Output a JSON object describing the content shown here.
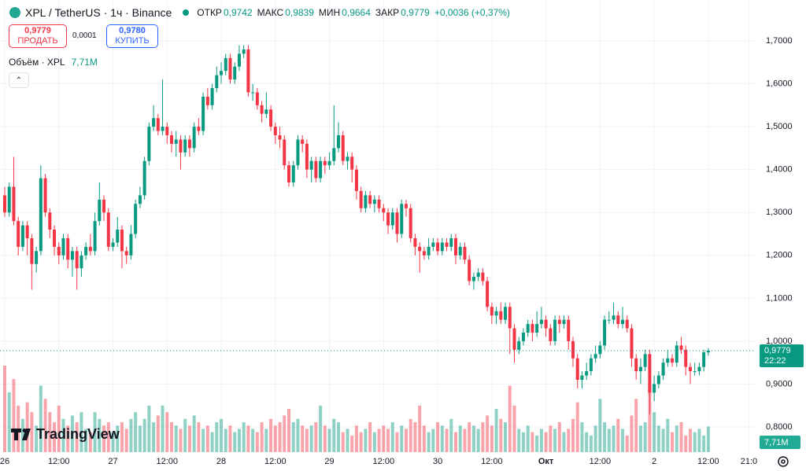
{
  "header": {
    "ohlc": [
      {
        "label": "ОТКР",
        "value": "0,9742"
      },
      {
        "label": "МАКС",
        "value": "0,9839"
      },
      {
        "label": "МИН",
        "value": "0,9664"
      },
      {
        "label": "ЗАКР",
        "value": "0,9779"
      }
    ],
    "change": "+0,0036 (+0,37%)"
  },
  "order": {
    "sell_price": "0,9779",
    "sell_label": "ПРОДАТЬ",
    "spread": "0,0001",
    "buy_price": "0,9780",
    "buy_label": "КУПИТЬ"
  },
  "logo": "TradingView",
  "chart_data": {
    "type": "candlestick",
    "title": "XPL / TetherUS · 1ч · Binance",
    "up_color": "#089981",
    "down_color": "#f23645",
    "grid": true,
    "ylim": [
      0.7414,
      1.7953
    ],
    "yticks": [
      {
        "value": 1.7,
        "label": "1,7000"
      },
      {
        "value": 1.6,
        "label": "1,6000"
      },
      {
        "value": 1.5,
        "label": "1,5000"
      },
      {
        "value": 1.4,
        "label": "1,4000"
      },
      {
        "value": 1.3,
        "label": "1,3000"
      },
      {
        "value": 1.2,
        "label": "1,2000"
      },
      {
        "value": 1.1,
        "label": "1,1000"
      },
      {
        "value": 1.0,
        "label": "1,0000"
      },
      {
        "value": 0.9,
        "label": "0,9000"
      },
      {
        "value": 0.8,
        "label": "0,8000"
      }
    ],
    "xticks": [
      {
        "value": 0,
        "label": "26"
      },
      {
        "value": 12,
        "label": "12:00"
      },
      {
        "value": 24,
        "label": "27"
      },
      {
        "value": 36,
        "label": "12:00"
      },
      {
        "value": 48,
        "label": "28"
      },
      {
        "value": 60,
        "label": "12:00"
      },
      {
        "value": 72,
        "label": "29"
      },
      {
        "value": 84,
        "label": "12:00"
      },
      {
        "value": 96,
        "label": "30"
      },
      {
        "value": 108,
        "label": "12:00"
      },
      {
        "value": 120,
        "label": "Окт"
      },
      {
        "value": 132,
        "label": "12:00"
      },
      {
        "value": 144,
        "label": "2"
      },
      {
        "value": 156,
        "label": "12:00"
      },
      {
        "value": 165,
        "label": "21:0"
      }
    ],
    "last_price": {
      "value": 0.9779,
      "label": "0,9779"
    },
    "countdown": "22:22",
    "volume_name": "Объём · XPL",
    "last_volume_label": "7,71M",
    "open": [
      1.34,
      1.3,
      1.36,
      1.28,
      1.22,
      1.27,
      1.24,
      1.18,
      1.21,
      1.38,
      1.3,
      1.26,
      1.22,
      1.2,
      1.24,
      1.19,
      1.21,
      1.17,
      1.2,
      1.22,
      1.21,
      1.28,
      1.33,
      1.3,
      1.22,
      1.23,
      1.26,
      1.21,
      1.2,
      1.25,
      1.32,
      1.34,
      1.42,
      1.5,
      1.52,
      1.49,
      1.5,
      1.48,
      1.46,
      1.47,
      1.44,
      1.47,
      1.45,
      1.5,
      1.49,
      1.57,
      1.55,
      1.59,
      1.62,
      1.63,
      1.66,
      1.61,
      1.64,
      1.67,
      1.68,
      1.58,
      1.58,
      1.55,
      1.53,
      1.54,
      1.5,
      1.48,
      1.47,
      1.41,
      1.37,
      1.41,
      1.47,
      1.46,
      1.4,
      1.42,
      1.38,
      1.42,
      1.41,
      1.42,
      1.45,
      1.48,
      1.42,
      1.43,
      1.4,
      1.35,
      1.31,
      1.34,
      1.32,
      1.33,
      1.31,
      1.3,
      1.27,
      1.3,
      1.25,
      1.32,
      1.31,
      1.24,
      1.22,
      1.21,
      1.2,
      1.22,
      1.23,
      1.21,
      1.23,
      1.22,
      1.24,
      1.2,
      1.22,
      1.19,
      1.14,
      1.15,
      1.16,
      1.14,
      1.08,
      1.06,
      1.07,
      1.05,
      1.08,
      1.03,
      0.98,
      1.0,
      1.02,
      1.04,
      1.02,
      1.04,
      1.05,
      1.03,
      1.0,
      1.05,
      1.04,
      1.05,
      1.0,
      0.96,
      0.91,
      0.92,
      0.93,
      0.96,
      0.97,
      0.99,
      1.05,
      1.05,
      1.06,
      1.04,
      1.05,
      1.03,
      0.96,
      0.93,
      0.94,
      0.97,
      0.88,
      0.9,
      0.92,
      0.95,
      0.96,
      0.95,
      0.99,
      0.98,
      0.94,
      0.93,
      0.93,
      0.94,
      0.974
    ],
    "high": [
      1.36,
      1.37,
      1.43,
      1.29,
      1.28,
      1.28,
      1.25,
      1.22,
      1.41,
      1.39,
      1.31,
      1.27,
      1.23,
      1.25,
      1.25,
      1.22,
      1.22,
      1.21,
      1.23,
      1.25,
      1.3,
      1.37,
      1.34,
      1.31,
      1.24,
      1.29,
      1.27,
      1.22,
      1.27,
      1.33,
      1.36,
      1.43,
      1.51,
      1.55,
      1.53,
      1.61,
      1.51,
      1.49,
      1.49,
      1.48,
      1.48,
      1.48,
      1.51,
      1.52,
      1.58,
      1.59,
      1.6,
      1.64,
      1.65,
      1.67,
      1.67,
      1.65,
      1.69,
      1.69,
      1.69,
      1.6,
      1.59,
      1.56,
      1.58,
      1.55,
      1.51,
      1.5,
      1.48,
      1.42,
      1.42,
      1.48,
      1.48,
      1.47,
      1.43,
      1.43,
      1.43,
      1.43,
      1.44,
      1.55,
      1.51,
      1.49,
      1.44,
      1.44,
      1.41,
      1.36,
      1.35,
      1.35,
      1.34,
      1.34,
      1.32,
      1.31,
      1.31,
      1.31,
      1.33,
      1.33,
      1.32,
      1.25,
      1.23,
      1.22,
      1.24,
      1.24,
      1.24,
      1.24,
      1.24,
      1.25,
      1.25,
      1.23,
      1.23,
      1.2,
      1.16,
      1.17,
      1.17,
      1.15,
      1.09,
      1.08,
      1.09,
      1.09,
      1.09,
      1.04,
      1.01,
      1.03,
      1.05,
      1.05,
      1.07,
      1.08,
      1.06,
      1.04,
      1.06,
      1.06,
      1.06,
      1.06,
      1.01,
      0.97,
      0.93,
      0.95,
      0.97,
      0.99,
      1.0,
      1.06,
      1.07,
      1.09,
      1.07,
      1.08,
      1.06,
      1.04,
      0.97,
      0.96,
      0.98,
      0.98,
      0.92,
      0.93,
      0.96,
      0.98,
      0.97,
      1.0,
      1.01,
      0.99,
      0.95,
      0.95,
      0.95,
      0.98,
      0.984
    ],
    "low": [
      1.29,
      1.29,
      1.27,
      1.2,
      1.21,
      1.2,
      1.12,
      1.16,
      1.2,
      1.29,
      1.24,
      1.2,
      1.18,
      1.19,
      1.17,
      1.15,
      1.12,
      1.15,
      1.19,
      1.2,
      1.2,
      1.27,
      1.28,
      1.21,
      1.21,
      1.22,
      1.17,
      1.18,
      1.19,
      1.24,
      1.31,
      1.33,
      1.41,
      1.49,
      1.48,
      1.48,
      1.46,
      1.44,
      1.43,
      1.4,
      1.43,
      1.43,
      1.44,
      1.48,
      1.48,
      1.54,
      1.54,
      1.58,
      1.6,
      1.62,
      1.6,
      1.6,
      1.63,
      1.66,
      1.57,
      1.56,
      1.54,
      1.51,
      1.52,
      1.49,
      1.46,
      1.45,
      1.4,
      1.36,
      1.36,
      1.4,
      1.44,
      1.38,
      1.37,
      1.37,
      1.37,
      1.39,
      1.4,
      1.41,
      1.44,
      1.41,
      1.4,
      1.37,
      1.33,
      1.3,
      1.3,
      1.31,
      1.3,
      1.3,
      1.28,
      1.25,
      1.26,
      1.23,
      1.24,
      1.29,
      1.23,
      1.2,
      1.16,
      1.19,
      1.19,
      1.21,
      1.2,
      1.2,
      1.21,
      1.21,
      1.18,
      1.19,
      1.18,
      1.13,
      1.12,
      1.14,
      1.13,
      1.07,
      1.04,
      1.04,
      1.04,
      1.04,
      0.97,
      0.95,
      0.97,
      0.99,
      1.01,
      1.0,
      1.01,
      1.03,
      1.01,
      0.99,
      0.99,
      1.02,
      1.03,
      0.98,
      0.94,
      0.89,
      0.89,
      0.91,
      0.92,
      0.95,
      0.96,
      0.98,
      1.04,
      1.04,
      1.03,
      1.03,
      1.02,
      0.94,
      0.91,
      0.9,
      0.93,
      0.83,
      0.86,
      0.89,
      0.91,
      0.94,
      0.94,
      0.94,
      0.97,
      0.92,
      0.9,
      0.92,
      0.92,
      0.93,
      0.966
    ],
    "close": [
      1.3,
      1.36,
      1.28,
      1.22,
      1.27,
      1.24,
      1.18,
      1.21,
      1.38,
      1.3,
      1.26,
      1.22,
      1.2,
      1.24,
      1.19,
      1.21,
      1.17,
      1.2,
      1.22,
      1.21,
      1.28,
      1.33,
      1.3,
      1.22,
      1.23,
      1.26,
      1.21,
      1.2,
      1.25,
      1.32,
      1.34,
      1.42,
      1.5,
      1.52,
      1.49,
      1.5,
      1.48,
      1.46,
      1.47,
      1.44,
      1.47,
      1.45,
      1.5,
      1.49,
      1.57,
      1.55,
      1.59,
      1.62,
      1.63,
      1.66,
      1.61,
      1.64,
      1.67,
      1.68,
      1.58,
      1.58,
      1.55,
      1.53,
      1.54,
      1.5,
      1.48,
      1.47,
      1.41,
      1.37,
      1.41,
      1.47,
      1.46,
      1.4,
      1.42,
      1.38,
      1.42,
      1.41,
      1.42,
      1.45,
      1.48,
      1.42,
      1.43,
      1.4,
      1.35,
      1.31,
      1.34,
      1.32,
      1.33,
      1.31,
      1.3,
      1.27,
      1.3,
      1.25,
      1.32,
      1.31,
      1.24,
      1.22,
      1.21,
      1.2,
      1.22,
      1.23,
      1.21,
      1.23,
      1.22,
      1.24,
      1.2,
      1.22,
      1.19,
      1.14,
      1.15,
      1.16,
      1.14,
      1.08,
      1.06,
      1.07,
      1.05,
      1.08,
      1.03,
      0.98,
      1.0,
      1.02,
      1.04,
      1.02,
      1.04,
      1.05,
      1.03,
      1.0,
      1.05,
      1.04,
      1.05,
      1.0,
      0.96,
      0.91,
      0.92,
      0.93,
      0.96,
      0.97,
      0.99,
      1.05,
      1.05,
      1.06,
      1.04,
      1.05,
      1.03,
      0.96,
      0.93,
      0.94,
      0.97,
      0.88,
      0.9,
      0.92,
      0.95,
      0.96,
      0.95,
      0.99,
      0.98,
      0.94,
      0.93,
      0.93,
      0.94,
      0.974,
      0.9779
    ],
    "volume": [
      26,
      18,
      22,
      14,
      10,
      15,
      12,
      8,
      20,
      16,
      12,
      9,
      14,
      10,
      8,
      11,
      9,
      12,
      7,
      6,
      12,
      10,
      8,
      9,
      6,
      8,
      9,
      7,
      10,
      12,
      8,
      10,
      14,
      9,
      11,
      14,
      12,
      9,
      8,
      7,
      10,
      8,
      11,
      9,
      7,
      8,
      6,
      9,
      10,
      7,
      8,
      6,
      7,
      9,
      8,
      7,
      6,
      9,
      7,
      10,
      8,
      9,
      11,
      13,
      9,
      10,
      8,
      7,
      8,
      9,
      14,
      8,
      7,
      10,
      9,
      6,
      7,
      5,
      8,
      6,
      7,
      9,
      6,
      7,
      8,
      7,
      9,
      6,
      8,
      7,
      10,
      9,
      14,
      8,
      6,
      7,
      9,
      8,
      7,
      10,
      6,
      8,
      7,
      9,
      8,
      7,
      9,
      11,
      8,
      13,
      10,
      9,
      20,
      14,
      7,
      6,
      8,
      6,
      5,
      7,
      6,
      8,
      7,
      9,
      6,
      7,
      10,
      15,
      9,
      6,
      5,
      8,
      16,
      9,
      7,
      8,
      10,
      7,
      5,
      11,
      16,
      8,
      9,
      20,
      12,
      8,
      7,
      10,
      6,
      8,
      9,
      5,
      7,
      6,
      7,
      5,
      7.71
    ]
  }
}
